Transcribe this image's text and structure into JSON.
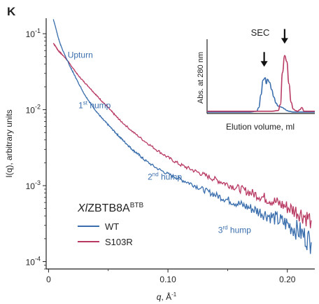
{
  "panel_label": "K",
  "chart_data": [
    {
      "type": "line",
      "title": "",
      "xlabel": {
        "italic": "q",
        "rest": ", Å",
        "sup": "-1"
      },
      "ylabel": "I(q), arbitrary units",
      "xlim": [
        -0.002,
        0.223
      ],
      "ylim": [
        8e-05,
        0.16
      ],
      "yscale": "log",
      "x_ticks": [
        0,
        0.1,
        0.2
      ],
      "x_tick_labels": [
        "0",
        "0.10",
        "0.20"
      ],
      "y_ticks": [
        0.0001,
        0.001,
        0.01,
        0.1
      ],
      "y_tick_labels": [
        {
          "base": "10",
          "exp": "-4"
        },
        {
          "base": "10",
          "exp": "-3"
        },
        {
          "base": "10",
          "exp": "-2"
        },
        {
          "base": "10",
          "exp": "-1"
        }
      ],
      "legend_title": {
        "italic": "Xl",
        "rest": "ZBTB8A",
        "sup": "BTB"
      },
      "legend_position": "lower-left",
      "series": [
        {
          "name": "WT",
          "color": "#3a6ead",
          "x": [
            0.004,
            0.006,
            0.008,
            0.01,
            0.012,
            0.015,
            0.018,
            0.021,
            0.025,
            0.03,
            0.035,
            0.04,
            0.045,
            0.05,
            0.055,
            0.06,
            0.065,
            0.07,
            0.075,
            0.08,
            0.09,
            0.1,
            0.11,
            0.12,
            0.13,
            0.14,
            0.15,
            0.16,
            0.17,
            0.18,
            0.19,
            0.2,
            0.21,
            0.22
          ],
          "y": [
            0.155,
            0.12,
            0.09,
            0.072,
            0.06,
            0.047,
            0.037,
            0.03,
            0.0225,
            0.016,
            0.0122,
            0.0095,
            0.0076,
            0.0063,
            0.0052,
            0.0043,
            0.0036,
            0.003,
            0.0026,
            0.0022,
            0.00172,
            0.00142,
            0.00122,
            0.00105,
            0.00088,
            0.00075,
            0.00065,
            0.00057,
            0.0005,
            0.00043,
            0.00037,
            0.00031,
            0.00025,
            0.00018
          ]
        },
        {
          "name": "S103R",
          "color": "#b83a62",
          "x": [
            0.004,
            0.006,
            0.008,
            0.01,
            0.012,
            0.015,
            0.02,
            0.025,
            0.03,
            0.035,
            0.04,
            0.045,
            0.05,
            0.055,
            0.06,
            0.07,
            0.08,
            0.09,
            0.1,
            0.11,
            0.12,
            0.13,
            0.14,
            0.15,
            0.16,
            0.17,
            0.18,
            0.19,
            0.2,
            0.21,
            0.22
          ],
          "y": [
            0.075,
            0.068,
            0.06,
            0.056,
            0.052,
            0.046,
            0.036,
            0.028,
            0.023,
            0.019,
            0.0155,
            0.0128,
            0.0106,
            0.0087,
            0.0072,
            0.0052,
            0.0039,
            0.003,
            0.00235,
            0.0019,
            0.00162,
            0.00139,
            0.0012,
            0.00104,
            0.00091,
            0.0008,
            0.0007,
            0.00061,
            0.00052,
            0.00044,
            0.00035
          ]
        }
      ],
      "annotations": [
        {
          "text": "Upturn",
          "color": "#3a6ead",
          "x": 0.016,
          "y": 0.048
        },
        {
          "text": "1",
          "sup": "st",
          "rest": " hump",
          "color": "#3a6ead",
          "x": 0.025,
          "y": 0.0105
        },
        {
          "text": "2",
          "sup": "nd",
          "rest": " hump",
          "color": "#3a6ead",
          "x": 0.083,
          "y": 0.0012
        },
        {
          "text": "3",
          "sup": "rd",
          "rest": " hump",
          "color": "#3a6ead",
          "x": 0.142,
          "y": 0.00024
        }
      ]
    },
    {
      "type": "line",
      "title": "SEC",
      "xlabel": "Elution volume, ml",
      "ylabel": "Abs. at 280 nm",
      "xlim": [
        0,
        100
      ],
      "ylim": [
        0,
        100
      ],
      "series": [
        {
          "name": "WT",
          "color": "#3a6ead",
          "x": [
            0,
            20,
            40,
            46,
            48,
            50,
            52,
            54,
            55,
            56,
            58,
            60,
            62,
            64,
            66,
            68,
            70,
            72,
            74,
            76,
            80,
            90,
            100
          ],
          "y": [
            2,
            2,
            2,
            3,
            8,
            25,
            45,
            48,
            40,
            46,
            42,
            32,
            22,
            14,
            10,
            9,
            8,
            6,
            4,
            3,
            2,
            2,
            2
          ]
        },
        {
          "name": "S103R",
          "color": "#b83a62",
          "x": [
            0,
            20,
            40,
            60,
            66,
            68,
            70,
            72,
            74,
            76,
            78,
            80,
            82,
            84,
            86,
            88,
            90,
            100
          ],
          "y": [
            3,
            3,
            3,
            3,
            4,
            12,
            55,
            78,
            70,
            40,
            15,
            6,
            4,
            3,
            5,
            8,
            3,
            3
          ]
        }
      ],
      "annotations": [
        {
          "text": "arrow",
          "x": 53,
          "y": 62
        },
        {
          "text": "arrow",
          "x": 72,
          "y": 93
        }
      ]
    }
  ]
}
